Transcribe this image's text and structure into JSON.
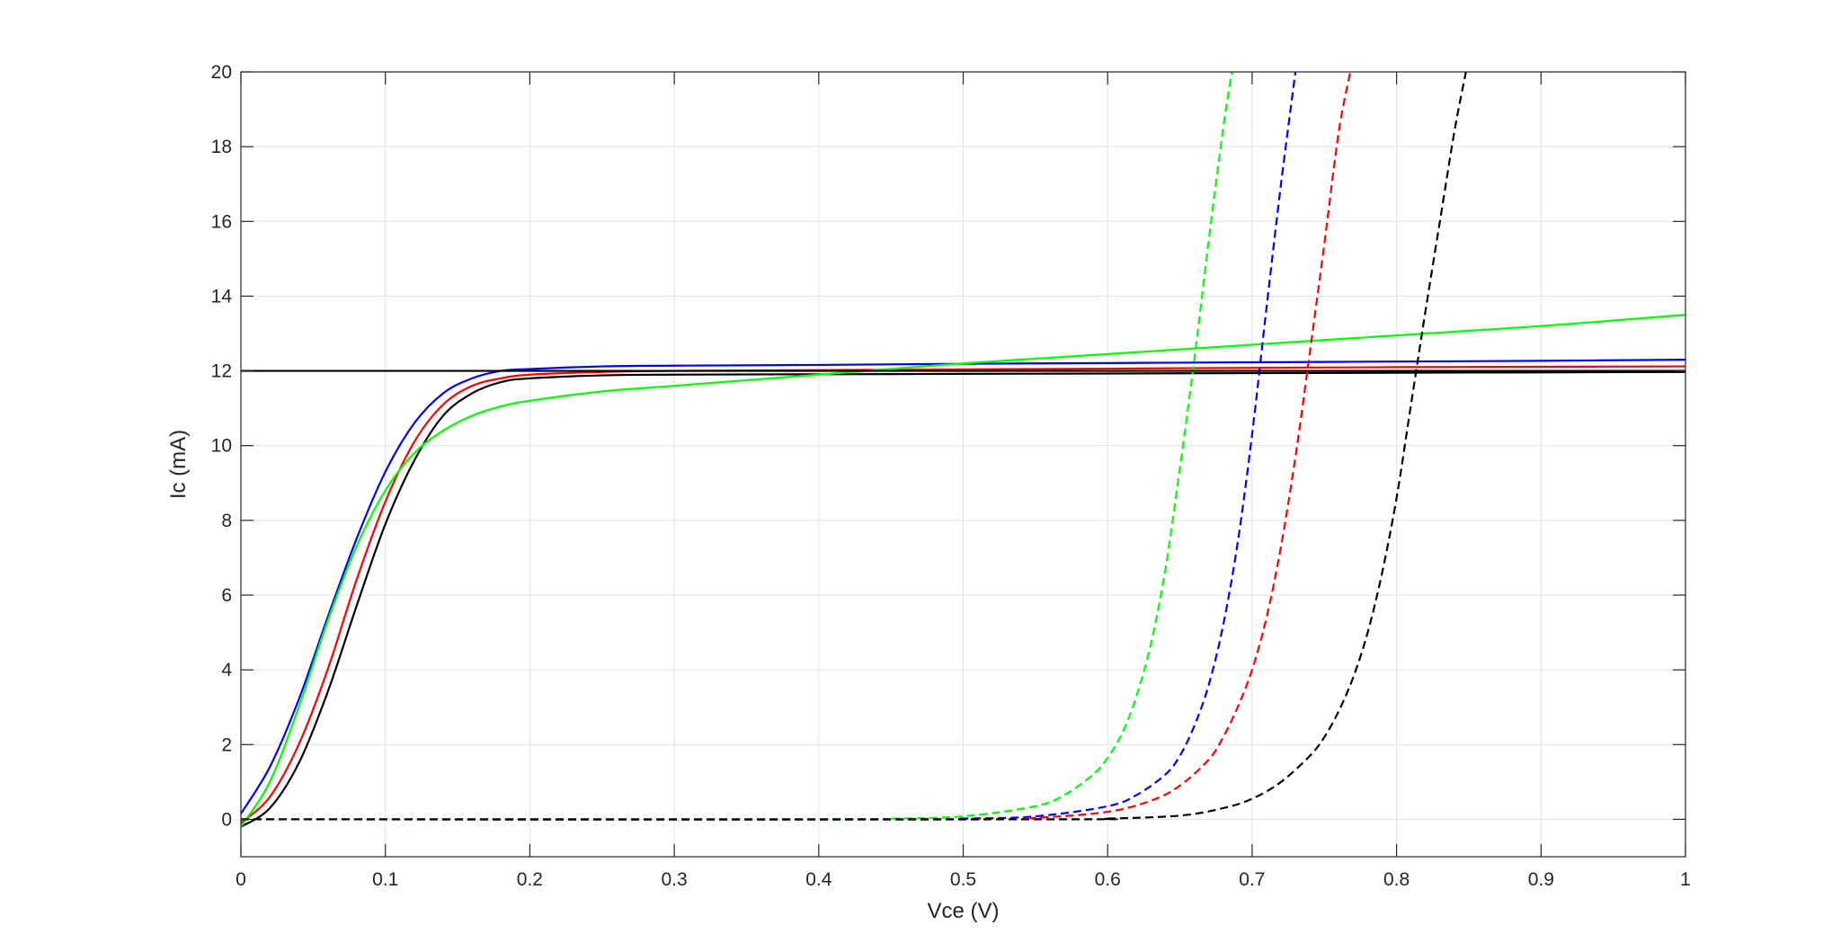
{
  "chart_data": {
    "type": "line",
    "title": "",
    "xlabel": "Vce (V)",
    "ylabel": "Ic (mA)",
    "xlim": [
      0,
      1
    ],
    "ylim": [
      -1,
      20
    ],
    "grid": true,
    "xticks": [
      0,
      0.1,
      0.2,
      0.3,
      0.4,
      0.5,
      0.6,
      0.7,
      0.8,
      0.9,
      1
    ],
    "xtick_labels": [
      "0",
      "0.1",
      "0.2",
      "0.3",
      "0.4",
      "0.5",
      "0.6",
      "0.7",
      "0.8",
      "0.9",
      "1"
    ],
    "yticks": [
      0,
      2,
      4,
      6,
      8,
      10,
      12,
      14,
      16,
      18,
      20
    ],
    "ytick_labels": [
      "0",
      "2",
      "4",
      "6",
      "8",
      "10",
      "12",
      "14",
      "16",
      "18",
      "20"
    ],
    "series": [
      {
        "color": "#000000",
        "style": "solid",
        "width": 2.2,
        "x": [
          0,
          0.02,
          0.04,
          0.06,
          0.08,
          0.1,
          0.12,
          0.14,
          0.16,
          0.18,
          0.2,
          0.25,
          0.3,
          0.4,
          0.5,
          0.6,
          0.7,
          0.8,
          0.9,
          1.0
        ],
        "y": [
          -0.2,
          0.3,
          1.5,
          3.4,
          5.7,
          7.9,
          9.6,
          10.8,
          11.4,
          11.7,
          11.8,
          11.88,
          11.9,
          11.91,
          11.92,
          11.93,
          11.94,
          11.95,
          11.96,
          11.97
        ]
      },
      {
        "color": "#ff0000",
        "style": "solid",
        "width": 2.2,
        "x": [
          0,
          0.02,
          0.04,
          0.06,
          0.08,
          0.1,
          0.12,
          0.14,
          0.16,
          0.18,
          0.2,
          0.25,
          0.3,
          0.4,
          0.5,
          0.6,
          0.7,
          0.8,
          0.9,
          1.0
        ],
        "y": [
          -0.1,
          0.6,
          2.0,
          4.0,
          6.4,
          8.5,
          10.1,
          11.1,
          11.6,
          11.8,
          11.9,
          11.97,
          12.0,
          12.02,
          12.04,
          12.06,
          12.08,
          12.1,
          12.11,
          12.12
        ]
      },
      {
        "color": "#0000ff",
        "style": "solid",
        "width": 2.2,
        "x": [
          0,
          0.02,
          0.04,
          0.06,
          0.08,
          0.1,
          0.12,
          0.14,
          0.16,
          0.18,
          0.2,
          0.25,
          0.3,
          0.4,
          0.5,
          0.6,
          0.7,
          0.8,
          0.9,
          1.0
        ],
        "y": [
          0.15,
          1.4,
          3.2,
          5.4,
          7.5,
          9.3,
          10.6,
          11.4,
          11.8,
          12.0,
          12.05,
          12.12,
          12.14,
          12.16,
          12.19,
          12.21,
          12.23,
          12.25,
          12.27,
          12.3
        ]
      },
      {
        "color": "#00ff00",
        "style": "solid",
        "width": 2.2,
        "x": [
          0,
          0.02,
          0.04,
          0.06,
          0.08,
          0.1,
          0.12,
          0.14,
          0.16,
          0.18,
          0.2,
          0.25,
          0.3,
          0.35,
          0.4,
          0.5,
          0.6,
          0.7,
          0.8,
          0.9,
          1.0
        ],
        "y": [
          -0.2,
          1.0,
          3.0,
          5.3,
          7.3,
          8.8,
          9.8,
          10.4,
          10.8,
          11.05,
          11.2,
          11.45,
          11.6,
          11.75,
          11.9,
          12.2,
          12.45,
          12.7,
          12.95,
          13.2,
          13.5
        ]
      },
      {
        "color": "#00ff00",
        "style": "dashed",
        "width": 2.2,
        "x": [
          0,
          0.4,
          0.45,
          0.5,
          0.55,
          0.57,
          0.59,
          0.6,
          0.61,
          0.62,
          0.63,
          0.64,
          0.65,
          0.66,
          0.67,
          0.68,
          0.686
        ],
        "y": [
          0,
          0,
          0.02,
          0.08,
          0.35,
          0.65,
          1.2,
          1.65,
          2.3,
          3.3,
          4.7,
          6.7,
          9.4,
          12.3,
          15.5,
          18.5,
          20.0
        ]
      },
      {
        "color": "#0000ff",
        "style": "dashed",
        "width": 2.2,
        "x": [
          0,
          0.45,
          0.5,
          0.55,
          0.6,
          0.62,
          0.64,
          0.65,
          0.66,
          0.67,
          0.68,
          0.69,
          0.7,
          0.71,
          0.72,
          0.73
        ],
        "y": [
          0,
          0,
          0.02,
          0.08,
          0.35,
          0.65,
          1.2,
          1.7,
          2.5,
          3.6,
          5.2,
          7.4,
          10.3,
          13.7,
          17.0,
          20.0
        ]
      },
      {
        "color": "#ff0000",
        "style": "dashed",
        "width": 2.2,
        "x": [
          0,
          0.5,
          0.55,
          0.6,
          0.63,
          0.65,
          0.67,
          0.68,
          0.69,
          0.7,
          0.71,
          0.72,
          0.73,
          0.74,
          0.75,
          0.76,
          0.768
        ],
        "y": [
          0,
          0,
          0.04,
          0.2,
          0.5,
          0.9,
          1.6,
          2.2,
          3.0,
          4.0,
          5.4,
          7.3,
          9.7,
          12.5,
          15.4,
          18.4,
          20.0
        ]
      },
      {
        "color": "#000000",
        "style": "dashed",
        "width": 2.2,
        "x": [
          0,
          0.55,
          0.6,
          0.65,
          0.68,
          0.7,
          0.72,
          0.74,
          0.75,
          0.76,
          0.77,
          0.78,
          0.79,
          0.8,
          0.81,
          0.82,
          0.83,
          0.84,
          0.848
        ],
        "y": [
          0,
          0,
          0.02,
          0.1,
          0.3,
          0.55,
          1.0,
          1.7,
          2.2,
          2.9,
          3.8,
          5.0,
          6.6,
          8.6,
          11.1,
          13.6,
          16.0,
          18.4,
          20.0
        ]
      },
      {
        "color": "#000000",
        "style": "solid",
        "width": 2.2,
        "x": [
          0,
          1
        ],
        "y": [
          12,
          12
        ]
      }
    ]
  }
}
